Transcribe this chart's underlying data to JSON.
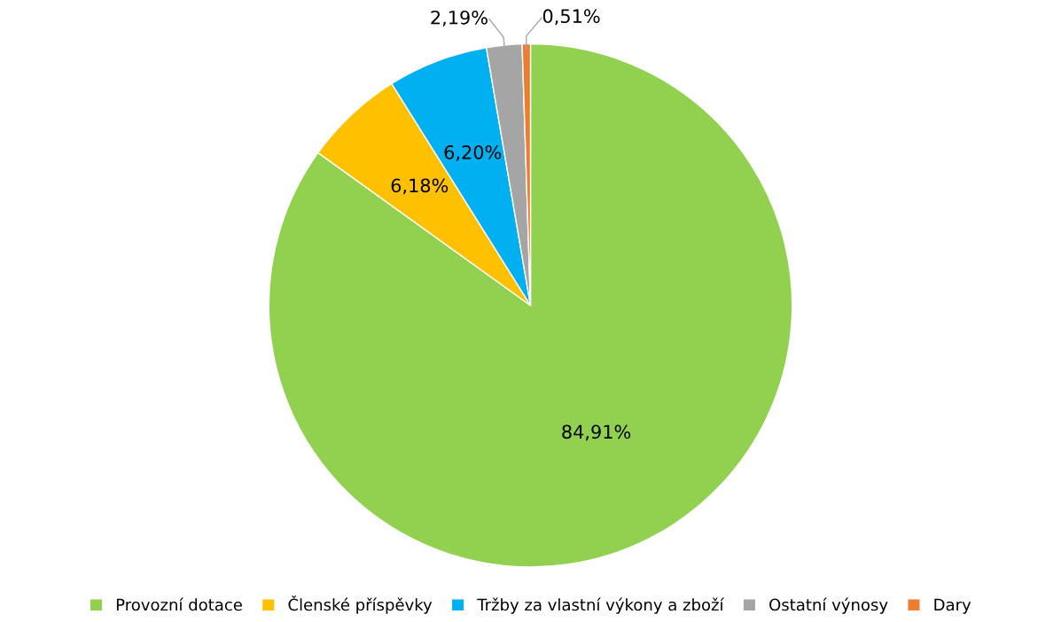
{
  "chart_data": {
    "type": "pie",
    "categories": [
      "Provozní dotace",
      "Členské příspěvky",
      "Tržby za vlastní výkony a zboží",
      "Ostatní výnosy",
      "Dary"
    ],
    "values": [
      84.91,
      6.18,
      6.2,
      2.19,
      0.51
    ],
    "colors": [
      "#92d050",
      "#ffc000",
      "#00b0f0",
      "#a5a5a5",
      "#ed7d31"
    ],
    "value_labels": [
      "84,91%",
      "6,18%",
      "6,20%",
      "2,19%",
      "0,51%"
    ],
    "legend": "bottom"
  }
}
